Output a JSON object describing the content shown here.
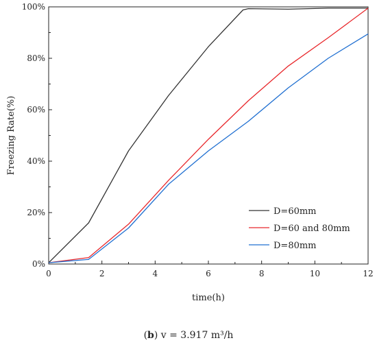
{
  "chart_data": {
    "type": "line",
    "xlabel": "time(h)",
    "ylabel": "Freezing Rate(%)",
    "xlim": [
      0,
      12
    ],
    "ylim": [
      0,
      100
    ],
    "x_ticks": [
      "0",
      "2",
      "4",
      "6",
      "8",
      "10",
      "12"
    ],
    "y_ticks": [
      "0%",
      "20%",
      "40%",
      "60%",
      "80%",
      "100%"
    ],
    "grid": false,
    "legend_position": "bottom-right",
    "series": [
      {
        "name": "D=60mm",
        "color": "#333333",
        "x": [
          0,
          1.5,
          3,
          4.5,
          6,
          7.3,
          7.5,
          9,
          10.5,
          12
        ],
        "y": [
          0.5,
          16,
          44,
          65.5,
          84.5,
          98.8,
          99.3,
          99.1,
          99.5,
          99.5
        ]
      },
      {
        "name": "D=60 and 80mm",
        "color": "#e8262a",
        "x": [
          0,
          1.5,
          3,
          4.5,
          6,
          7.5,
          9,
          10.5,
          12
        ],
        "y": [
          0.5,
          2.5,
          15.5,
          32.5,
          48.5,
          63.5,
          77,
          88,
          99.5
        ]
      },
      {
        "name": "D=80mm",
        "color": "#1f6fd1",
        "x": [
          0,
          1.5,
          3,
          4.5,
          6,
          7.5,
          9,
          10.5,
          12
        ],
        "y": [
          0.5,
          1.8,
          14,
          31,
          44,
          55.5,
          68.5,
          80,
          89.5
        ]
      }
    ]
  },
  "caption": {
    "label": "b",
    "text": " v = 3.917 m³/h"
  }
}
